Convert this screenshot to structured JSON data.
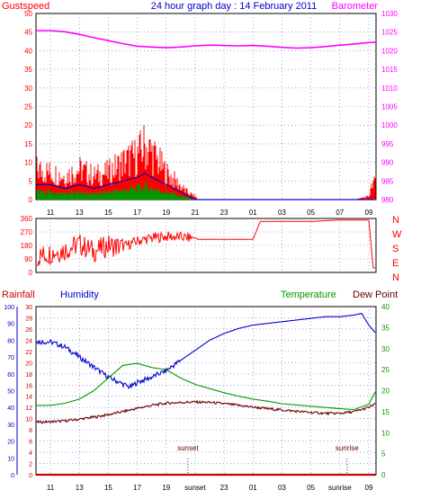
{
  "header": {
    "left_label": "Gustspeed",
    "title": "24 hour graph day : 14 February 2011",
    "right_label": "Barometer"
  },
  "colors": {
    "gust": "#ff0000",
    "wind": "#0000cc",
    "windavg": "#009900",
    "baro": "#ff00ff",
    "dir": "#ff0000",
    "humidity": "#0000cc",
    "temperature": "#009900",
    "dewpoint": "#660000",
    "rain": "#cc0000",
    "frame": "#000000",
    "grid": "#6666cc"
  },
  "x_ticks": {
    "labels": [
      "11",
      "13",
      "15",
      "17",
      "19",
      "21",
      "23",
      "01",
      "03",
      "05",
      "07",
      "09"
    ]
  },
  "bottom_x_ticks": {
    "labels": [
      "11",
      "13",
      "15",
      "17",
      "19",
      "sunset",
      "23",
      "01",
      "03",
      "05",
      "sunrise",
      "09"
    ]
  },
  "panel3_labels": {
    "rainfall": "Rainfall",
    "humidity": "Humidity",
    "temperature": "Temperature",
    "dewpoint": "Dew Point",
    "sunset": "sunset",
    "sunrise": "sunrise"
  },
  "chart_data": [
    {
      "type": "line",
      "title": "24 hour graph day : 14 February 2011",
      "x_range_hours": [
        10,
        33.5
      ],
      "left_axis": {
        "label": "Gustspeed",
        "ylim": [
          0,
          50
        ],
        "ticks": [
          0,
          5,
          10,
          15,
          20,
          25,
          30,
          35,
          40,
          45,
          50
        ]
      },
      "right_axis": {
        "label": "Barometer",
        "ylim": [
          980,
          1030
        ],
        "ticks": [
          980,
          985,
          990,
          995,
          1000,
          1005,
          1010,
          1015,
          1020,
          1025,
          1030
        ]
      },
      "series": [
        {
          "name": "Gustspeed",
          "axis": "left",
          "hours": [
            10,
            11,
            12,
            13,
            14,
            15,
            16,
            17,
            17.5,
            18,
            18.5,
            19,
            19.5,
            20,
            20.5,
            21,
            21.2,
            22,
            23,
            24,
            25,
            26,
            27,
            28,
            29,
            30,
            31,
            32,
            33,
            33.3
          ],
          "values": [
            9,
            8,
            7,
            9,
            7,
            8,
            11,
            13,
            16,
            14,
            11,
            8,
            6,
            4,
            2,
            1,
            0,
            0,
            0,
            0,
            0,
            0,
            0,
            0,
            0,
            0,
            0,
            0,
            1,
            5
          ]
        },
        {
          "name": "Wind",
          "axis": "left",
          "hours": [
            10,
            11,
            12,
            13,
            14,
            15,
            16,
            17,
            17.5,
            18,
            18.5,
            19,
            19.5,
            20,
            20.5,
            21,
            21.2,
            33.3
          ],
          "values": [
            4,
            4,
            3,
            4,
            3,
            4,
            5,
            6,
            7,
            6,
            5,
            4,
            3,
            2,
            1,
            0,
            0,
            0
          ]
        },
        {
          "name": "Barometer",
          "axis": "right",
          "hours": [
            10,
            11,
            12,
            13,
            14,
            15,
            16,
            17,
            18,
            19,
            20,
            21,
            22,
            23,
            24,
            25,
            26,
            27,
            28,
            29,
            30,
            31,
            32,
            33,
            33.5
          ],
          "values": [
            1025.4,
            1025.4,
            1025.1,
            1024.4,
            1023.5,
            1022.7,
            1021.9,
            1021.2,
            1021.0,
            1020.8,
            1021.0,
            1021.3,
            1021.5,
            1021.4,
            1021.3,
            1021.4,
            1021.2,
            1020.9,
            1020.7,
            1020.8,
            1021.1,
            1021.5,
            1021.8,
            1022.2,
            1022.3
          ]
        }
      ]
    },
    {
      "type": "line",
      "title": "",
      "x_range_hours": [
        10,
        33.5
      ],
      "left_axis": {
        "ylim": [
          0,
          360
        ],
        "ticks": [
          0,
          90,
          180,
          270,
          360
        ]
      },
      "right_axis": {
        "labels": [
          "N",
          "W",
          "S",
          "E",
          "N"
        ]
      },
      "series": [
        {
          "name": "Wind direction",
          "hours": [
            10,
            11,
            12,
            13,
            14,
            15,
            16,
            17,
            18,
            19,
            20,
            21,
            21.2,
            23,
            25,
            25.5,
            27,
            29,
            31,
            32,
            33,
            33.3
          ],
          "values": [
            100,
            130,
            150,
            190,
            140,
            180,
            170,
            210,
            230,
            240,
            235,
            230,
            220,
            220,
            220,
            340,
            340,
            340,
            350,
            350,
            350,
            30
          ]
        }
      ]
    },
    {
      "type": "line",
      "title": "",
      "x_range_hours": [
        10,
        33.5
      ],
      "rainfall_axis": {
        "label": "Rainfall",
        "ylim": [
          0,
          30
        ],
        "ticks": [
          0,
          2,
          4,
          6,
          8,
          10,
          12,
          14,
          16,
          18,
          20,
          22,
          24,
          26,
          28,
          30
        ]
      },
      "humidity_axis": {
        "label": "Humidity",
        "ylim": [
          0,
          100
        ],
        "ticks": [
          0,
          10,
          20,
          30,
          40,
          50,
          60,
          70,
          80,
          90,
          100
        ]
      },
      "temperature_axis": {
        "label": "Temperature",
        "ylim": [
          0,
          40
        ],
        "ticks": [
          0,
          5,
          10,
          15,
          20,
          25,
          30,
          35,
          40
        ]
      },
      "series": [
        {
          "name": "Humidity",
          "axis": "humidity",
          "hours": [
            10,
            11,
            12,
            13,
            14,
            15,
            16,
            16.5,
            17,
            18,
            19,
            20,
            21,
            22,
            23,
            24,
            25,
            26,
            27,
            28,
            29,
            30,
            31,
            32,
            32.5,
            33,
            33.5
          ],
          "values": [
            79,
            79,
            76,
            70,
            64,
            58,
            54,
            52,
            55,
            58,
            62,
            68,
            74,
            80,
            84,
            87,
            89,
            90,
            91,
            92,
            93,
            94,
            94,
            95,
            96,
            89,
            84
          ]
        },
        {
          "name": "Temperature",
          "axis": "temperature",
          "hours": [
            10,
            11,
            12,
            13,
            14,
            15,
            16,
            17,
            18,
            19,
            20,
            21,
            22,
            23,
            24,
            25,
            26,
            27,
            28,
            29,
            30,
            31,
            32,
            33,
            33.5
          ],
          "values": [
            16.5,
            16.5,
            17,
            18,
            20,
            23,
            26,
            26.5,
            25.5,
            25,
            23,
            21.5,
            20.5,
            19.5,
            18.7,
            18,
            17.5,
            16.9,
            16.6,
            16.3,
            16,
            15.7,
            15.5,
            16.8,
            20
          ]
        },
        {
          "name": "Dew Point",
          "axis": "temperature",
          "hours": [
            10,
            11,
            12,
            13,
            14,
            15,
            16,
            17,
            18,
            19,
            20,
            21,
            22,
            23,
            24,
            25,
            26,
            27,
            28,
            29,
            30,
            31,
            32,
            33,
            33.5
          ],
          "values": [
            12.5,
            12.6,
            12.8,
            13.2,
            13.7,
            14.3,
            15,
            15.8,
            16.5,
            17,
            17.2,
            17.3,
            17.2,
            16.9,
            16.5,
            16.1,
            15.7,
            15.4,
            15.1,
            14.8,
            14.6,
            14.6,
            15,
            16,
            17
          ]
        },
        {
          "name": "Rainfall",
          "axis": "rainfall",
          "hours": [
            10,
            33.5
          ],
          "values": [
            0,
            0
          ]
        }
      ],
      "annotations": [
        {
          "label": "sunset",
          "hour": 20.5
        },
        {
          "label": "sunrise",
          "hour": 31.5
        }
      ]
    }
  ]
}
